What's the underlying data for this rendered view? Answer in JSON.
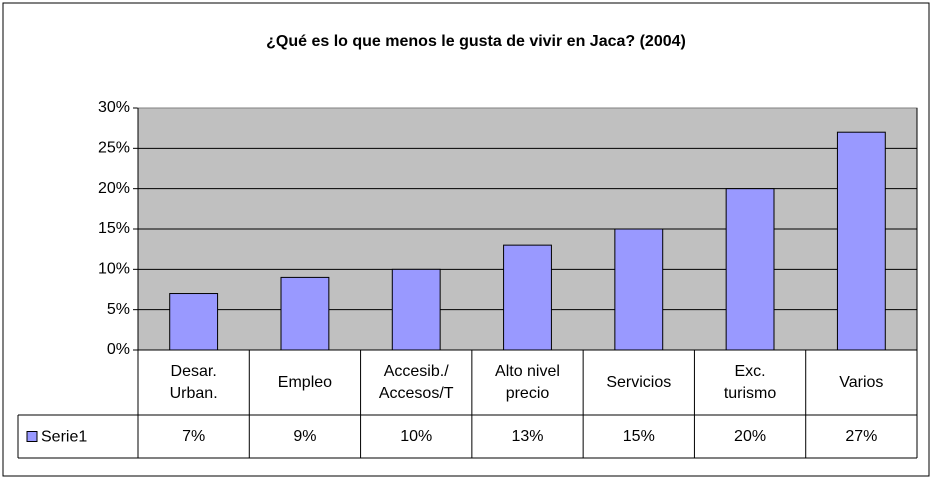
{
  "chart_data": {
    "type": "bar",
    "title": "¿Qué es lo que menos le gusta de vivir en Jaca? (2004)",
    "categories": [
      "Desar.\nUrban.",
      "Empleo",
      "Accesib./\nAccesos/T",
      "Alto nivel\nprecio",
      "Servicios",
      "Exc.\nturismo",
      "Varios"
    ],
    "series": [
      {
        "name": "Serie1",
        "color": "#9999ff",
        "values": [
          7,
          9,
          10,
          13,
          15,
          20,
          27
        ],
        "value_labels": [
          "7%",
          "9%",
          "10%",
          "13%",
          "15%",
          "20%",
          "27%"
        ]
      }
    ],
    "ylim": [
      0,
      30
    ],
    "yticks": [
      {
        "value": 0,
        "label": "0%"
      },
      {
        "value": 5,
        "label": "5%"
      },
      {
        "value": 10,
        "label": "10%"
      },
      {
        "value": 15,
        "label": "15%"
      },
      {
        "value": 20,
        "label": "20%"
      },
      {
        "value": 25,
        "label": "25%"
      },
      {
        "value": 30,
        "label": "30%"
      }
    ],
    "grid": true,
    "plot_background": "#c0c0c0"
  }
}
